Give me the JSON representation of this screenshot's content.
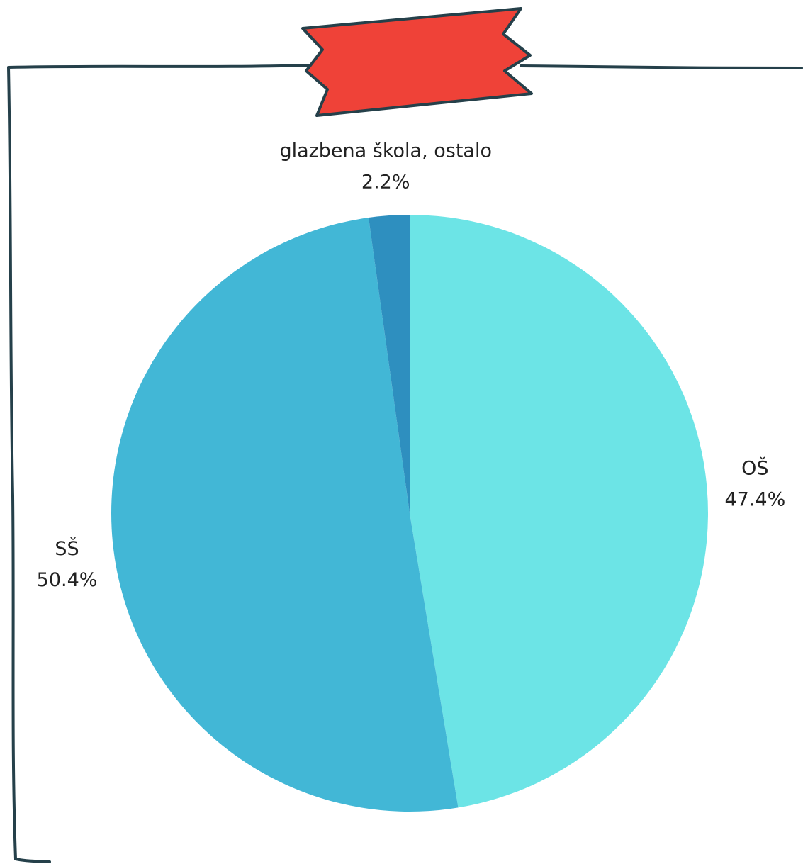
{
  "chart_data": {
    "type": "pie",
    "categories": [
      "OŠ",
      "SŠ",
      "glazbena škola, ostalo"
    ],
    "values": [
      47.4,
      50.4,
      2.2
    ],
    "value_labels": [
      "47.4%",
      "50.4%",
      "2.2%"
    ],
    "colors": [
      "#6ce4e6",
      "#42b7d6",
      "#2e8fbf"
    ]
  }
}
